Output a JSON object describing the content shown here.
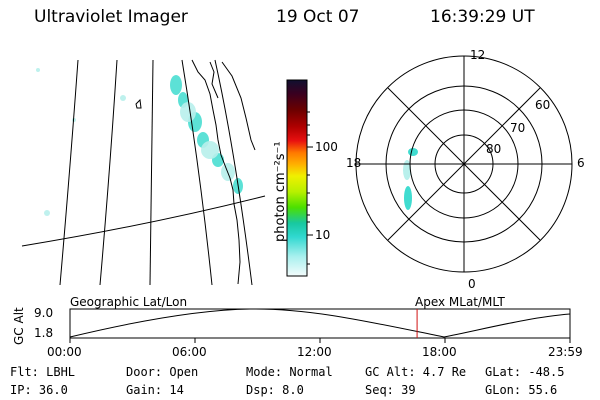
{
  "header": {
    "title": "Ultraviolet Imager",
    "date": "19 Oct 07",
    "time": "16:39:29 UT"
  },
  "colorbar": {
    "label": "photon cm⁻²s⁻¹",
    "ticks": [
      "100",
      "10"
    ],
    "colors": [
      "#101030",
      "#3a0020",
      "#6a0000",
      "#b00000",
      "#e81010",
      "#ff7800",
      "#ffb000",
      "#f0f000",
      "#b8f000",
      "#4ce000",
      "#18c8a0",
      "#30d8d0",
      "#a8f0ee",
      "#f4fcfc"
    ]
  },
  "polar": {
    "top_label": "12",
    "bottom_label": "0",
    "left_label": "18",
    "right_label": "6",
    "lat_labels": [
      "60",
      "70",
      "80"
    ]
  },
  "timeline": {
    "ylabel": "GC Alt",
    "ymax_label": "9.0",
    "ymin_label": "1.8",
    "left_caption": "Geographic Lat/Lon",
    "right_caption": "Apex MLat/MLT",
    "xticks": [
      "00:00",
      "06:00",
      "12:00",
      "18:00",
      "23:59"
    ],
    "current_hour": 16.66
  },
  "info": {
    "filter": "Flt: LBHL",
    "door": "Door: Open",
    "mode": "Mode: Normal",
    "gc_alt": "GC Alt: 4.7 Re",
    "glat": "GLat: -48.5",
    "ip": "IP: 36.0",
    "gain": "Gain: 14",
    "dsp": "Dsp:    8.0",
    "seq": "Seq: 39",
    "glon": "GLon:  55.6"
  },
  "icons": {
    "colorbar": "colorbar-icon"
  }
}
